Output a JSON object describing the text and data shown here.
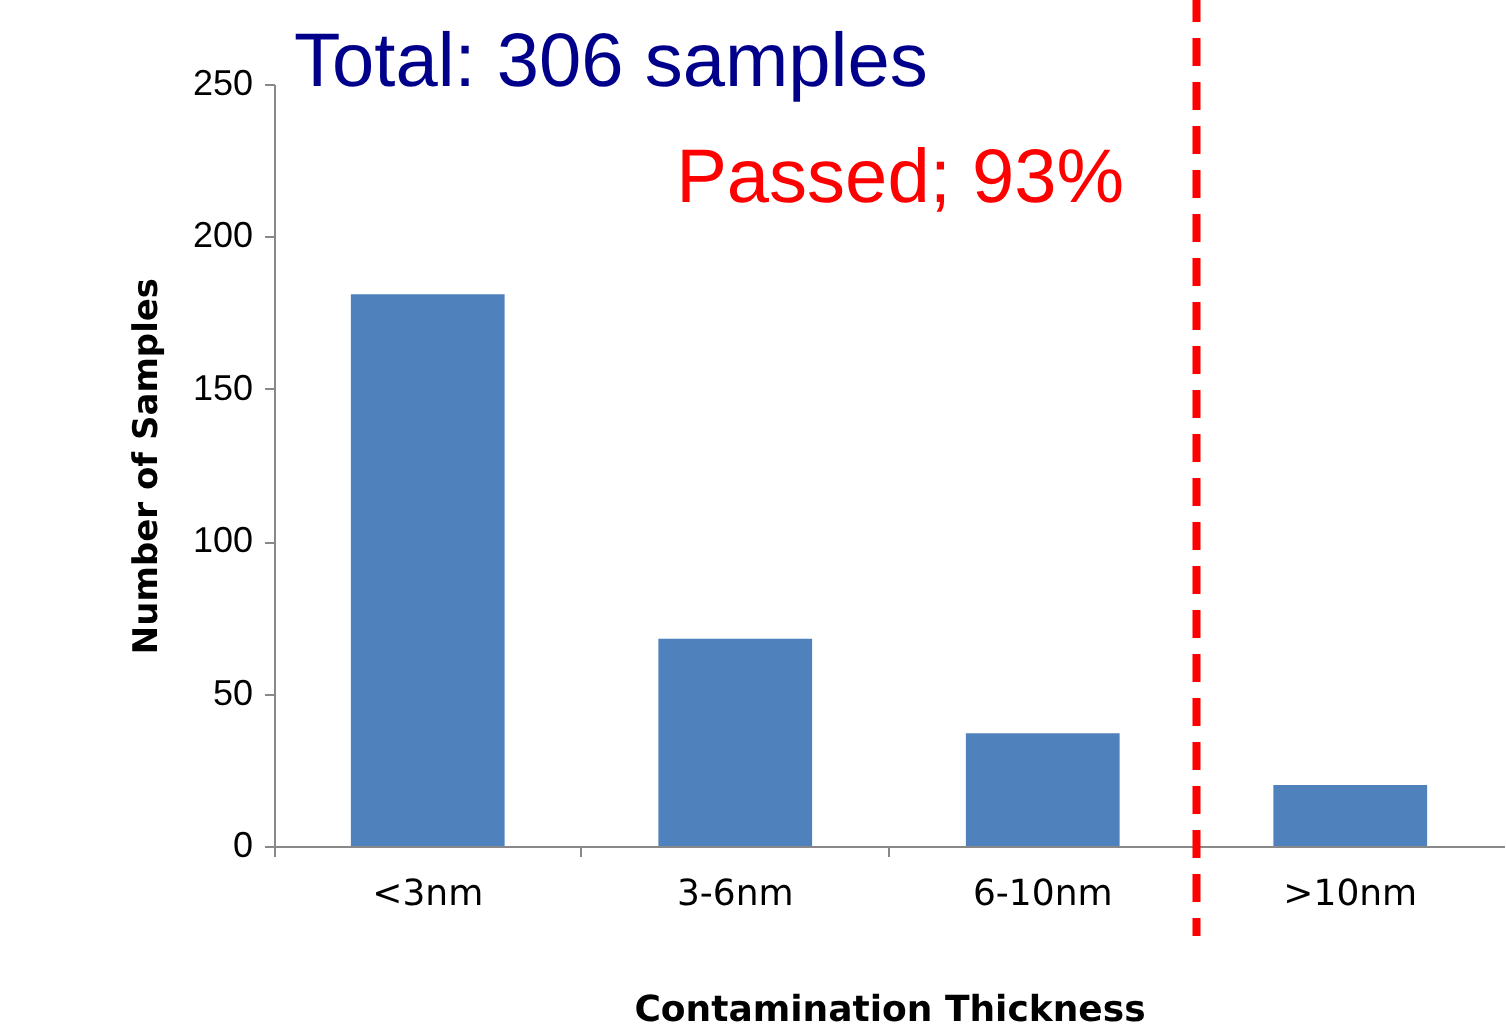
{
  "chart_data": {
    "type": "bar",
    "xlabel": "Contamination Thickness",
    "ylabel": "Number of Samples",
    "categories": [
      "<3nm",
      "3-6nm",
      "6-10nm",
      ">10nm"
    ],
    "values": [
      181,
      68,
      37,
      20
    ],
    "color": "#4f81bd",
    "ylim": [
      0,
      250
    ],
    "yticks": [
      0,
      50,
      100,
      150,
      200,
      250
    ],
    "grid": false,
    "ref_lines": [
      {
        "axis": "x",
        "value": ">10nm",
        "color": "#ff0000",
        "line_style": "dashed"
      }
    ],
    "annotations": [
      "Total: 306 samples",
      "Passed; 93%"
    ]
  }
}
